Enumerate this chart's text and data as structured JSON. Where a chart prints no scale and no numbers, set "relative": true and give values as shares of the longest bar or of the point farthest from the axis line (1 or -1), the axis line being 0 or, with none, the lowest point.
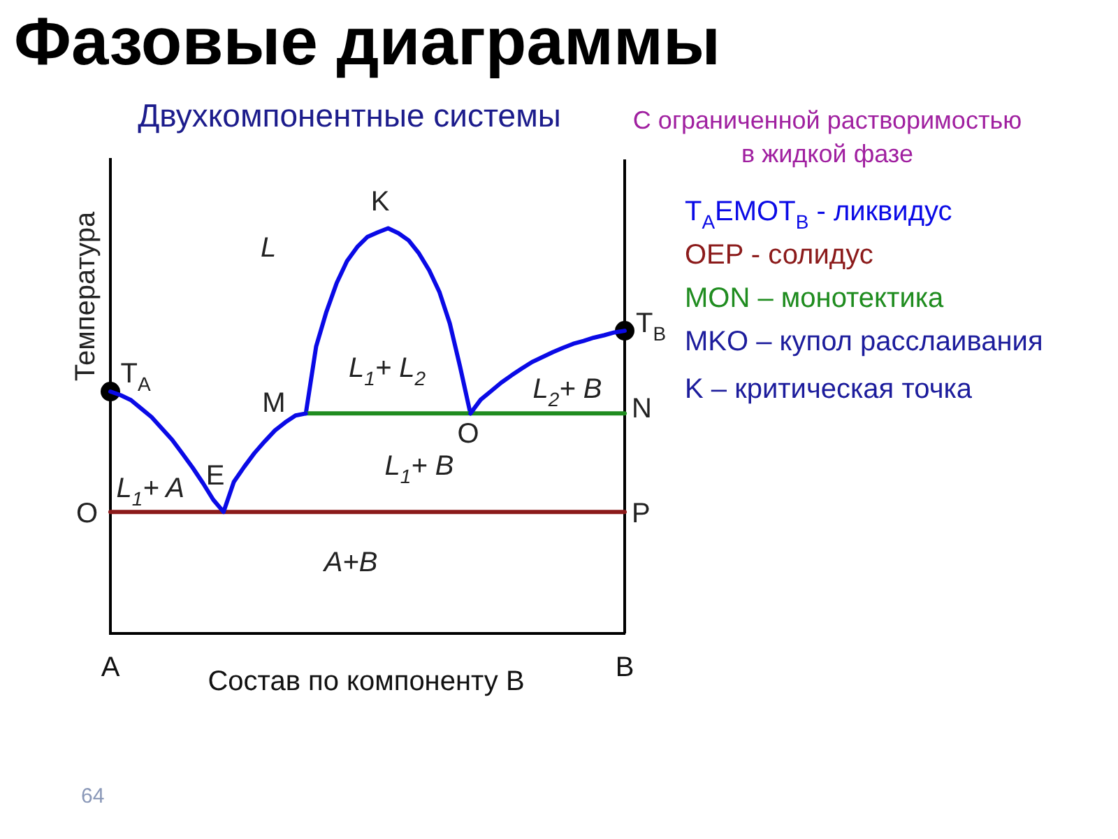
{
  "chart_data": {
    "type": "line",
    "title": "Фазовые диаграммы",
    "subtitle": "Двухкомпонентные системы",
    "legend_title": "С ограниченной растворимостью в жидкой фазе",
    "xlabel": "Состав по компоненту B",
    "ylabel": "Температура",
    "relative": true,
    "tick_labels": "x",
    "legend": "right",
    "categories": [
      "A",
      null,
      null,
      null,
      null,
      null,
      null,
      null,
      null,
      null,
      null,
      null,
      null,
      null,
      null,
      null,
      null,
      null,
      null,
      null,
      null,
      null,
      null,
      null,
      null,
      null,
      null,
      null,
      null,
      null,
      null,
      null,
      null,
      null,
      null,
      null,
      null,
      null,
      null,
      null,
      null,
      null,
      null,
      null,
      null,
      null,
      null,
      null,
      null,
      null,
      "B"
    ],
    "series": [
      {
        "name": "T$_{A}$EMOT$_{B}$ - ликвидус",
        "color": "#0a0ae6",
        "values": [
          0.597,
          0.588,
          0.576,
          0.555,
          0.534,
          0.506,
          0.478,
          0.444,
          0.409,
          0.371,
          0.33,
          0.3,
          0.374,
          0.411,
          0.445,
          0.474,
          0.501,
          0.521,
          0.538,
          0.543,
          null,
          null,
          null,
          null,
          null,
          null,
          null,
          null,
          null,
          null,
          null,
          null,
          null,
          null,
          null,
          0.543,
          0.577,
          0.598,
          0.619,
          0.637,
          0.654,
          0.67,
          0.682,
          0.694,
          0.705,
          0.715,
          0.722,
          0.73,
          0.736,
          0.743,
          0.747
        ]
      },
      {
        "name": "OEP - солидус",
        "color": "#8b1a1a",
        "values": [
          0.3,
          0.3,
          0.3,
          0.3,
          0.3,
          0.3,
          0.3,
          0.3,
          0.3,
          0.3,
          0.3,
          0.3,
          0.3,
          0.3,
          0.3,
          0.3,
          0.3,
          0.3,
          0.3,
          0.3,
          0.3,
          0.3,
          0.3,
          0.3,
          0.3,
          0.3,
          0.3,
          0.3,
          0.3,
          0.3,
          0.3,
          0.3,
          0.3,
          0.3,
          0.3,
          0.3,
          0.3,
          0.3,
          0.3,
          0.3,
          0.3,
          0.3,
          0.3,
          0.3,
          0.3,
          0.3,
          0.3,
          0.3,
          0.3,
          0.3,
          0.3
        ]
      },
      {
        "name": "MON – монотектика",
        "color": "#1f8c1f",
        "values": [
          null,
          null,
          null,
          null,
          null,
          null,
          null,
          null,
          null,
          null,
          null,
          null,
          null,
          null,
          null,
          null,
          null,
          null,
          null,
          0.543,
          0.543,
          0.543,
          0.543,
          0.543,
          0.543,
          0.543,
          0.543,
          0.543,
          0.543,
          0.543,
          0.543,
          0.543,
          0.543,
          0.543,
          0.543,
          0.543,
          0.543,
          0.543,
          0.543,
          0.543,
          0.543,
          0.543,
          0.543,
          0.543,
          0.543,
          0.543,
          0.543,
          0.543,
          0.543,
          0.543,
          0.543
        ]
      },
      {
        "color": "#0a0ae6",
        "values": [
          null,
          null,
          null,
          null,
          null,
          null,
          null,
          null,
          null,
          null,
          null,
          null,
          null,
          null,
          null,
          null,
          null,
          null,
          null,
          0.543,
          0.708,
          0.794,
          0.865,
          0.919,
          0.954,
          0.979,
          0.99,
          1,
          0.988,
          0.97,
          0.938,
          0.896,
          0.842,
          0.765,
          0.658,
          0.543,
          null,
          null,
          null,
          null,
          null,
          null,
          null,
          null,
          null,
          null,
          null,
          null,
          null,
          null,
          null
        ]
      },
      {
        "type": "scatter",
        "marker": "circle",
        "color": "#000000",
        "values": [
          0.597,
          null,
          null,
          null,
          null,
          null,
          null,
          null,
          null,
          null,
          null,
          null,
          null,
          null,
          null,
          null,
          null,
          null,
          null,
          null,
          null,
          null,
          null,
          null,
          null,
          null,
          null,
          null,
          null,
          null,
          null,
          null,
          null,
          null,
          null,
          null,
          null,
          null,
          null,
          null,
          null,
          null,
          null,
          null,
          null,
          null,
          null,
          null,
          null,
          null,
          0.747
        ]
      }
    ],
    "annotations": [
      "K",
      "L",
      "T$_{A}$",
      "T$_{B}$",
      "L$_{1}$+ L$_{2}$",
      "L$_{2}$+ B",
      "M",
      "N",
      "O",
      "E",
      "L$_{1}$+ B",
      "L$_{1}$+ A",
      "O",
      "P",
      "A+B",
      "MKO – купол расслаивания",
      "K – критическая точка",
      "64"
    ]
  }
}
